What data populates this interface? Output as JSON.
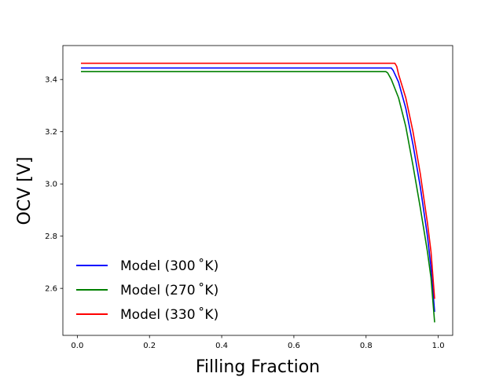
{
  "chart_data": {
    "type": "line",
    "title": "",
    "xlabel": "Filling Fraction",
    "ylabel": "OCV [V]",
    "xlim": [
      -0.04,
      1.04
    ],
    "ylim": [
      2.42,
      3.53
    ],
    "xticks": [
      0.0,
      0.2,
      0.4,
      0.6,
      0.8,
      1.0
    ],
    "xtick_labels": [
      "0.0",
      "0.2",
      "0.4",
      "0.6",
      "0.8",
      "1.0"
    ],
    "yticks": [
      2.6,
      2.8,
      3.0,
      3.2,
      3.4
    ],
    "ytick_labels": [
      "2.6",
      "2.8",
      "3.0",
      "3.2",
      "3.4"
    ],
    "grid": false,
    "legend_position": "lower-left",
    "series": [
      {
        "name": "Model (300$^\\circ$K)",
        "legend_label": "Model (300 ˚K)",
        "color": "#0000ff",
        "x": [
          0.01,
          0.87,
          0.875,
          0.89,
          0.91,
          0.93,
          0.95,
          0.97,
          0.98,
          0.99
        ],
        "y": [
          3.444,
          3.444,
          3.435,
          3.39,
          3.29,
          3.15,
          2.99,
          2.8,
          2.68,
          2.51
        ]
      },
      {
        "name": "Model (270$^\\circ$K)",
        "legend_label": "Model (270 ˚K)",
        "color": "#008000",
        "x": [
          0.01,
          0.855,
          0.86,
          0.87,
          0.89,
          0.91,
          0.93,
          0.95,
          0.97,
          0.98,
          0.99
        ],
        "y": [
          3.43,
          3.43,
          3.425,
          3.4,
          3.33,
          3.22,
          3.07,
          2.91,
          2.74,
          2.64,
          2.47
        ]
      },
      {
        "name": "Model (330$^\\circ$K)",
        "legend_label": "Model (330 ˚K)",
        "color": "#ff0000",
        "x": [
          0.01,
          0.88,
          0.885,
          0.89,
          0.91,
          0.93,
          0.95,
          0.97,
          0.98,
          0.99
        ],
        "y": [
          3.462,
          3.462,
          3.45,
          3.42,
          3.33,
          3.2,
          3.04,
          2.85,
          2.74,
          2.56
        ]
      }
    ]
  }
}
